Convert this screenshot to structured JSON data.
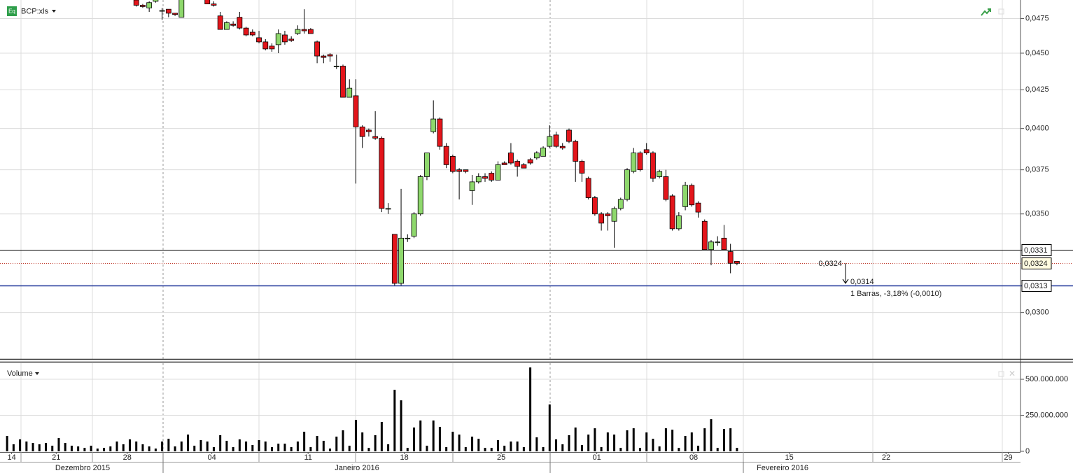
{
  "chart_data": [
    {
      "type": "candlestick",
      "title": "BCP:xls",
      "icon_label": "Eq",
      "log_y": true,
      "grid": true,
      "up_color": "#8ed86c",
      "down_color": "#e3151b",
      "xlim": [
        -1.1,
        156.9
      ],
      "ylim": [
        0.0279,
        0.0489
      ],
      "xticks": [
        {
          "value": 0.7,
          "label": "14"
        },
        {
          "value": 7.6,
          "label": "21"
        },
        {
          "value": 18.6,
          "label": "28"
        },
        {
          "value": 31.7,
          "label": "04"
        },
        {
          "value": 46.6,
          "label": "11"
        },
        {
          "value": 61.5,
          "label": "18"
        },
        {
          "value": 76.5,
          "label": "25"
        },
        {
          "value": 91.3,
          "label": "01"
        },
        {
          "value": 106.3,
          "label": "08"
        },
        {
          "value": 121.1,
          "label": "15"
        },
        {
          "value": 136.1,
          "label": "22"
        },
        {
          "value": 155.0,
          "label": "29"
        }
      ],
      "months": [
        "Dezembro 2015",
        "Janeiro 2016",
        "Fevereiro 2016"
      ],
      "yticks": [
        {
          "value": 0.0475,
          "label": "0,0475"
        },
        {
          "value": 0.045,
          "label": "0,0450"
        },
        {
          "value": 0.0425,
          "label": "0,0425"
        },
        {
          "value": 0.04,
          "label": "0,0400"
        },
        {
          "value": 0.0375,
          "label": "0,0375"
        },
        {
          "value": 0.035,
          "label": "0,0350"
        },
        {
          "value": 0.03,
          "label": "0,0300"
        }
      ],
      "x": [
        20,
        21,
        22,
        23,
        24,
        25,
        26,
        27,
        31,
        32,
        33,
        34,
        35,
        36,
        37,
        38,
        39,
        40,
        41,
        42,
        43,
        44,
        45,
        46,
        47,
        48,
        49,
        50,
        51,
        52,
        53,
        54,
        55,
        56,
        57,
        58,
        59,
        60,
        61,
        62,
        63,
        64,
        65,
        66,
        67,
        68,
        69,
        70,
        71,
        72,
        73,
        74,
        75,
        76,
        77,
        78,
        79,
        80,
        81,
        82,
        83,
        84,
        85,
        86,
        87,
        88,
        89,
        90,
        91,
        92,
        93,
        94,
        95,
        96,
        97,
        98,
        99,
        100,
        101,
        102,
        103,
        104,
        105,
        106,
        107,
        108,
        109,
        110,
        111,
        112,
        113
      ],
      "open": [
        0.0489,
        0.0485,
        0.0483,
        0.0488,
        0.0481,
        0.0482,
        0.0479,
        0.0476,
        0.0492,
        0.0486,
        0.0477,
        0.0467,
        0.0471,
        0.0476,
        0.0468,
        0.0465,
        0.0461,
        0.0458,
        0.0455,
        0.0456,
        0.0463,
        0.046,
        0.0464,
        0.0467,
        0.0467,
        0.0458,
        0.0448,
        0.0449,
        0.0441,
        0.0441,
        0.042,
        0.0421,
        0.0401,
        0.0399,
        0.0395,
        0.0394,
        0.0353,
        0.0339,
        0.0314,
        0.0337,
        0.0338,
        0.035,
        0.0371,
        0.0398,
        0.0406,
        0.0389,
        0.0383,
        0.0375,
        0.0375,
        0.0363,
        0.0368,
        0.0371,
        0.0373,
        0.0369,
        0.0379,
        0.0385,
        0.038,
        0.0378,
        0.0381,
        0.0382,
        0.0383,
        0.0389,
        0.0396,
        0.0389,
        0.0399,
        0.0392,
        0.038,
        0.037,
        0.0359,
        0.035,
        0.035,
        0.0346,
        0.0353,
        0.0358,
        0.0374,
        0.0385,
        0.0387,
        0.0385,
        0.0371,
        0.0371,
        0.036,
        0.0342,
        0.0354,
        0.0366,
        0.0356,
        0.0346,
        0.0331,
        0.0335,
        0.0337,
        0.033,
        0.0325
      ],
      "high": [
        0.0491,
        0.0486,
        0.0488,
        0.0492,
        0.0483,
        0.0482,
        0.0479,
        0.0493,
        0.0493,
        0.0488,
        0.048,
        0.0473,
        0.0473,
        0.048,
        0.0469,
        0.0467,
        0.0466,
        0.046,
        0.0457,
        0.0467,
        0.0466,
        0.0462,
        0.047,
        0.0482,
        0.0468,
        0.0459,
        0.0449,
        0.045,
        0.0449,
        0.0442,
        0.0432,
        0.0432,
        0.0402,
        0.04,
        0.0411,
        0.0395,
        0.0356,
        0.0339,
        0.0364,
        0.0339,
        0.0351,
        0.0372,
        0.0385,
        0.0418,
        0.0407,
        0.0391,
        0.0384,
        0.0376,
        0.0375,
        0.0372,
        0.0373,
        0.0373,
        0.0374,
        0.038,
        0.038,
        0.0391,
        0.0381,
        0.0379,
        0.0382,
        0.0386,
        0.0389,
        0.0402,
        0.0398,
        0.0391,
        0.04,
        0.0393,
        0.0381,
        0.0371,
        0.036,
        0.0351,
        0.0351,
        0.0354,
        0.0359,
        0.0376,
        0.0388,
        0.0386,
        0.0391,
        0.0386,
        0.0375,
        0.0375,
        0.0361,
        0.0351,
        0.0368,
        0.0367,
        0.0357,
        0.0347,
        0.0336,
        0.0338,
        0.0344,
        0.0334,
        0.0325
      ],
      "low": [
        0.0484,
        0.0483,
        0.048,
        0.0487,
        0.0474,
        0.0476,
        0.0477,
        0.0476,
        0.0486,
        0.0484,
        0.0467,
        0.0467,
        0.0469,
        0.0467,
        0.0462,
        0.0462,
        0.0457,
        0.0452,
        0.0451,
        0.045,
        0.0456,
        0.0458,
        0.0463,
        0.0464,
        0.0464,
        0.0443,
        0.0443,
        0.0444,
        0.0439,
        0.042,
        0.042,
        0.0367,
        0.0388,
        0.0395,
        0.0393,
        0.0351,
        0.035,
        0.0313,
        0.0313,
        0.0335,
        0.0337,
        0.0349,
        0.0369,
        0.0397,
        0.0387,
        0.0376,
        0.0373,
        0.0358,
        0.0373,
        0.0355,
        0.0367,
        0.0368,
        0.0368,
        0.0369,
        0.0378,
        0.0378,
        0.0371,
        0.0376,
        0.0378,
        0.0381,
        0.0383,
        0.0388,
        0.0388,
        0.0387,
        0.0391,
        0.0368,
        0.0368,
        0.0358,
        0.0349,
        0.0341,
        0.0341,
        0.0332,
        0.0352,
        0.0357,
        0.0373,
        0.0374,
        0.0384,
        0.0368,
        0.037,
        0.0357,
        0.0341,
        0.0341,
        0.0352,
        0.0354,
        0.0348,
        0.0331,
        0.0323,
        0.0333,
        0.0331,
        0.0319,
        0.0323
      ],
      "close": [
        0.0485,
        0.0484,
        0.0487,
        0.049,
        0.0481,
        0.0479,
        0.0478,
        0.0492,
        0.0486,
        0.0485,
        0.0467,
        0.0472,
        0.047,
        0.0468,
        0.0463,
        0.0463,
        0.0458,
        0.0453,
        0.0453,
        0.0464,
        0.0458,
        0.0459,
        0.0467,
        0.0466,
        0.0464,
        0.0448,
        0.0447,
        0.0448,
        0.0441,
        0.042,
        0.0426,
        0.0401,
        0.0395,
        0.0398,
        0.0394,
        0.0353,
        0.0353,
        0.0314,
        0.0337,
        0.0337,
        0.035,
        0.0371,
        0.0385,
        0.0406,
        0.0389,
        0.0378,
        0.0374,
        0.0374,
        0.0374,
        0.0368,
        0.0371,
        0.037,
        0.0369,
        0.0378,
        0.0378,
        0.0379,
        0.0377,
        0.0376,
        0.0379,
        0.0385,
        0.0388,
        0.0395,
        0.0389,
        0.0388,
        0.0392,
        0.038,
        0.0373,
        0.0359,
        0.035,
        0.0345,
        0.0349,
        0.0353,
        0.0358,
        0.0375,
        0.0385,
        0.0375,
        0.0385,
        0.037,
        0.0374,
        0.0358,
        0.0342,
        0.0349,
        0.0366,
        0.0355,
        0.0351,
        0.0331,
        0.0335,
        0.0335,
        0.0331,
        0.0324,
        0.0324
      ],
      "levels": [
        {
          "value": 0.0331,
          "label": "0,0331",
          "color": "#000000",
          "dotted": false
        },
        {
          "value": 0.0324,
          "label": "0,0324",
          "color": "#c0392b",
          "dotted": true
        },
        {
          "value": 0.0313,
          "label": "0,0313",
          "color": "#23399b",
          "dotted": false
        }
      ],
      "measure": {
        "from": {
          "value": 0.0324,
          "label": "0,0324"
        },
        "to": {
          "value": 0.0314,
          "label": "0,0314"
        },
        "text": "1 Barras, -3,18% (-0,0010)"
      }
    },
    {
      "type": "bar",
      "title": "Volume",
      "color": "#000000",
      "xlim": [
        -1.1,
        156.9
      ],
      "ylim": [
        0,
        612000000
      ],
      "yticks": [
        {
          "value": 500000000,
          "label": "500.000.000"
        },
        {
          "value": 250000000,
          "label": "250.000.000"
        },
        0
      ],
      "x": [
        0,
        1,
        2,
        3,
        4,
        5,
        6,
        7,
        8,
        9,
        10,
        11,
        12,
        13,
        14,
        15,
        16,
        17,
        18,
        19,
        20,
        21,
        22,
        23,
        24,
        25,
        26,
        27,
        28,
        29,
        30,
        31,
        32,
        33,
        34,
        35,
        36,
        37,
        38,
        39,
        40,
        41,
        42,
        43,
        44,
        45,
        46,
        47,
        48,
        49,
        50,
        51,
        52,
        53,
        54,
        55,
        56,
        57,
        58,
        59,
        60,
        61,
        62,
        63,
        64,
        65,
        66,
        67,
        68,
        69,
        70,
        71,
        72,
        73,
        74,
        75,
        76,
        77,
        78,
        79,
        80,
        81,
        82,
        83,
        84,
        85,
        86,
        87,
        88,
        89,
        90,
        91,
        92,
        93,
        94,
        95,
        96,
        97,
        98,
        99,
        100,
        101,
        102,
        103,
        104,
        105,
        106,
        107,
        108,
        109,
        110,
        111,
        112,
        113
      ],
      "values": [
        107000000,
        49000000,
        83000000,
        68000000,
        58000000,
        49000000,
        58000000,
        39000000,
        92000000,
        58000000,
        39000000,
        34000000,
        24000000,
        39000000,
        19000000,
        24000000,
        34000000,
        68000000,
        49000000,
        83000000,
        68000000,
        49000000,
        34000000,
        19000000,
        68000000,
        87000000,
        34000000,
        68000000,
        116000000,
        39000000,
        78000000,
        68000000,
        29000000,
        112000000,
        73000000,
        29000000,
        83000000,
        68000000,
        44000000,
        78000000,
        68000000,
        29000000,
        53000000,
        53000000,
        29000000,
        68000000,
        136000000,
        29000000,
        107000000,
        73000000,
        19000000,
        102000000,
        146000000,
        39000000,
        218000000,
        131000000,
        24000000,
        112000000,
        204000000,
        49000000,
        427000000,
        354000000,
        24000000,
        165000000,
        214000000,
        39000000,
        214000000,
        170000000,
        29000000,
        136000000,
        116000000,
        29000000,
        102000000,
        87000000,
        24000000,
        24000000,
        78000000,
        39000000,
        68000000,
        68000000,
        29000000,
        582000000,
        97000000,
        29000000,
        325000000,
        83000000,
        49000000,
        112000000,
        165000000,
        44000000,
        116000000,
        160000000,
        29000000,
        131000000,
        116000000,
        24000000,
        146000000,
        160000000,
        24000000,
        131000000,
        87000000,
        34000000,
        160000000,
        150000000,
        24000000,
        107000000,
        131000000,
        39000000,
        160000000,
        223000000,
        24000000,
        155000000,
        160000000,
        24000000
      ]
    }
  ]
}
